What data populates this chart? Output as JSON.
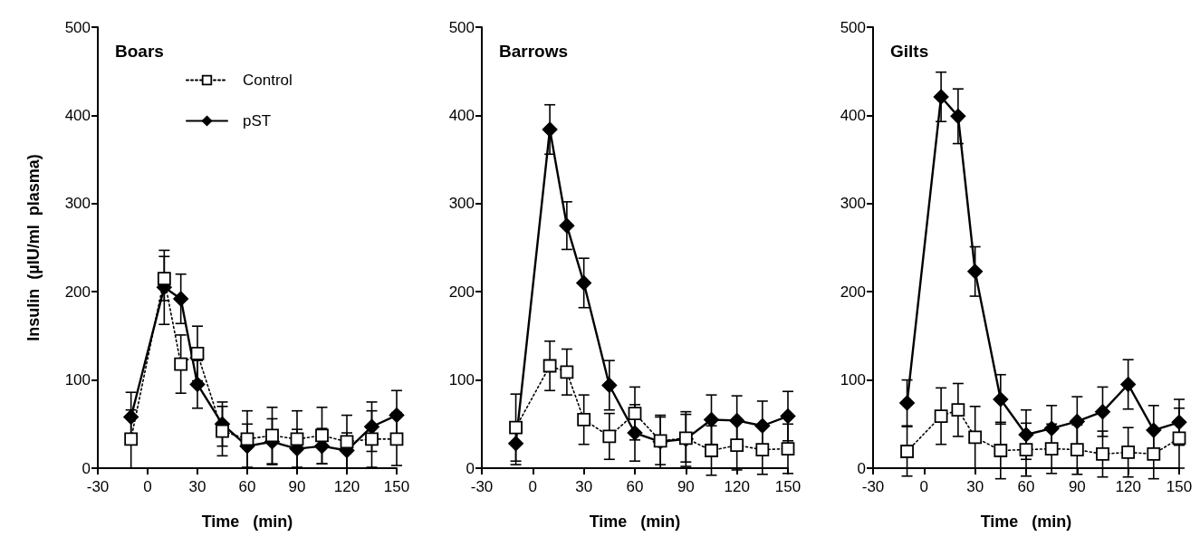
{
  "chart_data": [
    {
      "type": "line",
      "title": "Boars",
      "xlabel": "Time   (min)",
      "ylabel": "Insulin  (µIU/ml  plasma)",
      "xlim": [
        -30,
        150
      ],
      "xticks": [
        -30,
        0,
        30,
        60,
        90,
        120,
        150
      ],
      "ylim": [
        0,
        500
      ],
      "yticks": [
        0,
        100,
        200,
        300,
        400,
        500
      ],
      "grid": false,
      "legend": "top",
      "x": [
        -10,
        10,
        20,
        30,
        45,
        60,
        75,
        90,
        105,
        120,
        135,
        150
      ],
      "series": [
        {
          "name": "Control",
          "color": "#000000",
          "marker": "square",
          "line_style": "dotted",
          "values": [
            33,
            215,
            118,
            130,
            42,
            33,
            37,
            33,
            37,
            30,
            33,
            33
          ],
          "errors": [
            33,
            25,
            33,
            31,
            28,
            32,
            32,
            32,
            32,
            30,
            32,
            30
          ]
        },
        {
          "name": "pST",
          "color": "#000000",
          "marker": "diamond",
          "line_style": "solid",
          "values": [
            58,
            205,
            192,
            95,
            50,
            25,
            30,
            22,
            25,
            20,
            47,
            60
          ],
          "errors": [
            28,
            42,
            28,
            27,
            25,
            25,
            26,
            22,
            20,
            20,
            28,
            28
          ]
        }
      ]
    },
    {
      "type": "line",
      "title": "Barrows",
      "xlabel": "Time   (min)",
      "xlim": [
        -30,
        150
      ],
      "xticks": [
        -30,
        0,
        30,
        60,
        90,
        120,
        150
      ],
      "ylim": [
        0,
        500
      ],
      "yticks": [
        0,
        100,
        200,
        300,
        400,
        500
      ],
      "grid": false,
      "legend": false,
      "x": [
        -10,
        10,
        20,
        30,
        45,
        60,
        75,
        90,
        105,
        120,
        135,
        150
      ],
      "series": [
        {
          "color": "#000000",
          "marker": "square",
          "line_style": "dotted",
          "values": [
            46,
            116,
            109,
            55,
            36,
            62,
            31,
            34,
            20,
            26,
            21,
            22
          ],
          "errors": [
            38,
            28,
            26,
            28,
            26,
            30,
            27,
            27,
            28,
            28,
            28,
            28
          ]
        },
        {
          "color": "#000000",
          "marker": "diamond",
          "line_style": "solid",
          "values": [
            28,
            384,
            275,
            210,
            94,
            40,
            30,
            33,
            55,
            54,
            48,
            59
          ],
          "errors": [
            24,
            28,
            27,
            28,
            28,
            32,
            30,
            31,
            28,
            28,
            28,
            28
          ]
        }
      ]
    },
    {
      "type": "line",
      "title": "Gilts",
      "xlabel": "Time   (min)",
      "xlim": [
        -30,
        150
      ],
      "xticks": [
        -30,
        0,
        30,
        60,
        90,
        120,
        150
      ],
      "ylim": [
        0,
        500
      ],
      "yticks": [
        0,
        100,
        200,
        300,
        400,
        500
      ],
      "grid": false,
      "legend": false,
      "x": [
        -10,
        10,
        20,
        30,
        45,
        60,
        75,
        90,
        105,
        120,
        135,
        150
      ],
      "series": [
        {
          "color": "#000000",
          "marker": "square",
          "line_style": "dotted",
          "values": [
            19,
            59,
            66,
            35,
            20,
            21,
            22,
            21,
            16,
            18,
            16,
            34
          ],
          "errors": [
            28,
            32,
            30,
            35,
            32,
            30,
            28,
            28,
            26,
            28,
            28,
            34
          ]
        },
        {
          "color": "#000000",
          "marker": "diamond",
          "line_style": "solid",
          "values": [
            74,
            421,
            399,
            223,
            78,
            38,
            45,
            53,
            64,
            95,
            43,
            52
          ],
          "errors": [
            26,
            28,
            31,
            28,
            28,
            28,
            26,
            28,
            28,
            28,
            28,
            26
          ]
        }
      ]
    }
  ]
}
